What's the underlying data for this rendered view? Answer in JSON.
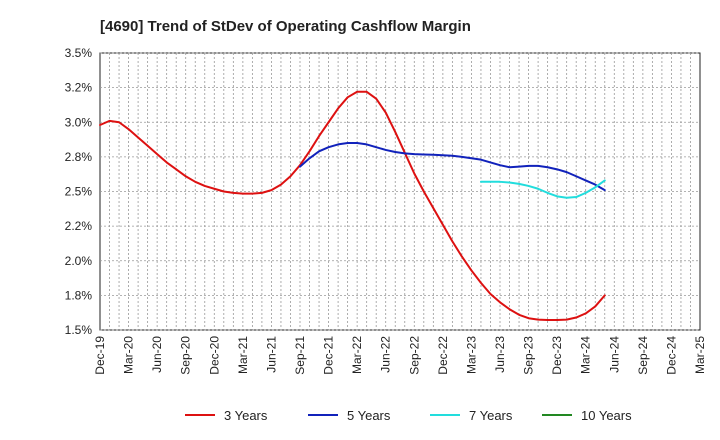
{
  "chart_data": {
    "type": "line",
    "title": "[4690]  Trend of StDev of Operating Cashflow Margin",
    "xlabel": "",
    "ylabel": "",
    "grid": true,
    "legend_position": "bottom",
    "x_ticks": [
      "Dec-19",
      "Mar-20",
      "Jun-20",
      "Sep-20",
      "Dec-20",
      "Mar-21",
      "Jun-21",
      "Sep-21",
      "Dec-21",
      "Mar-22",
      "Jun-22",
      "Sep-22",
      "Dec-22",
      "Mar-23",
      "Jun-23",
      "Sep-23",
      "Dec-23",
      "Mar-24",
      "Jun-24",
      "Sep-24",
      "Dec-24",
      "Mar-25"
    ],
    "y_ticks": [
      "1.5%",
      "1.8%",
      "2.0%",
      "2.2%",
      "2.5%",
      "2.8%",
      "3.0%",
      "3.2%",
      "3.5%"
    ],
    "ylim": [
      1.5,
      3.5
    ],
    "series": [
      {
        "name": "3 Years",
        "color": "#dd1111",
        "values": [
          2.98,
          3.01,
          3.0,
          2.95,
          2.89,
          2.83,
          2.77,
          2.71,
          2.66,
          2.61,
          2.57,
          2.54,
          2.52,
          2.5,
          2.49,
          2.485,
          2.485,
          2.49,
          2.51,
          2.55,
          2.61,
          2.69,
          2.79,
          2.9,
          3.0,
          3.1,
          3.18,
          3.22,
          3.22,
          3.17,
          3.07,
          2.93,
          2.78,
          2.63,
          2.5,
          2.38,
          2.26,
          2.14,
          2.03,
          1.93,
          1.84,
          1.76,
          1.7,
          1.65,
          1.61,
          1.585,
          1.575,
          1.572,
          1.572,
          1.575,
          1.59,
          1.62,
          1.67,
          1.75
        ]
      },
      {
        "name": "5 Years",
        "color": "#1122bb",
        "values": [
          null,
          null,
          null,
          null,
          null,
          null,
          null,
          null,
          null,
          null,
          null,
          null,
          null,
          null,
          null,
          null,
          null,
          null,
          null,
          null,
          null,
          2.68,
          2.74,
          2.79,
          2.82,
          2.84,
          2.85,
          2.85,
          2.84,
          2.82,
          2.8,
          2.785,
          2.775,
          2.77,
          2.767,
          2.765,
          2.762,
          2.758,
          2.75,
          2.74,
          2.73,
          2.71,
          2.69,
          2.675,
          2.68,
          2.685,
          2.685,
          2.675,
          2.66,
          2.64,
          2.61,
          2.58,
          2.55,
          2.51
        ]
      },
      {
        "name": "7 Years",
        "color": "#22dddd",
        "values": [
          null,
          null,
          null,
          null,
          null,
          null,
          null,
          null,
          null,
          null,
          null,
          null,
          null,
          null,
          null,
          null,
          null,
          null,
          null,
          null,
          null,
          null,
          null,
          null,
          null,
          null,
          null,
          null,
          null,
          null,
          null,
          null,
          null,
          null,
          null,
          null,
          null,
          null,
          null,
          null,
          2.57,
          2.57,
          2.57,
          2.565,
          2.555,
          2.54,
          2.52,
          2.49,
          2.465,
          2.455,
          2.46,
          2.49,
          2.53,
          2.58
        ]
      },
      {
        "name": "10 Years",
        "color": "#228822",
        "values": []
      }
    ]
  }
}
